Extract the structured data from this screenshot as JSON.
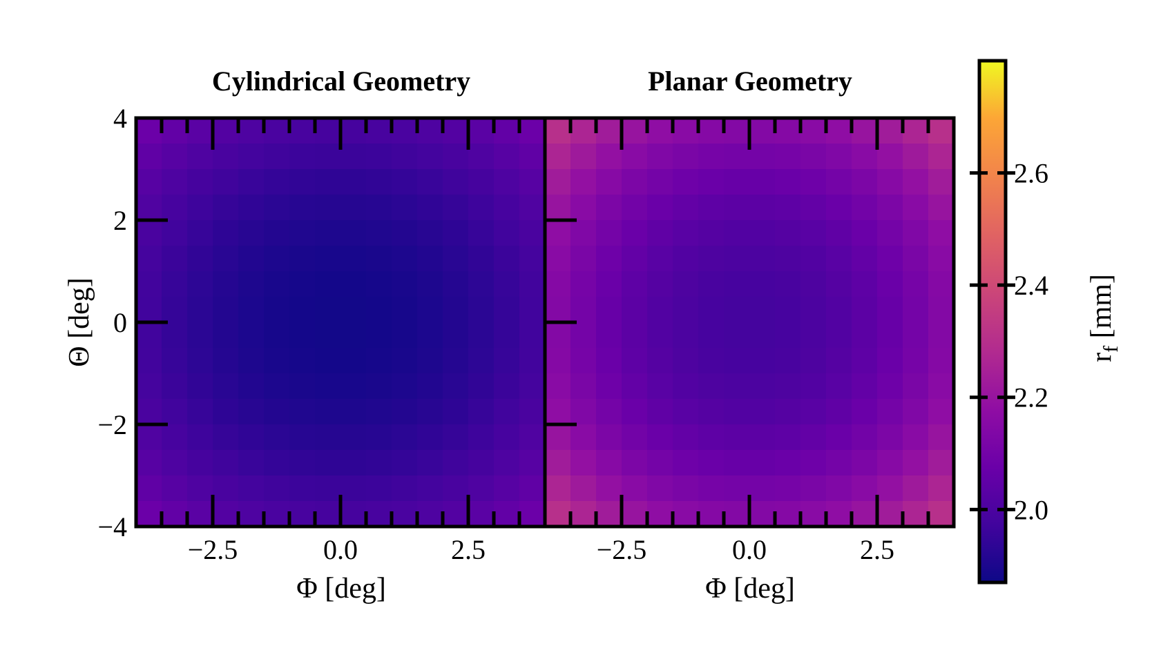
{
  "chart_data": [
    {
      "type": "heatmap",
      "title": "Cylindrical Geometry",
      "xlabel": "Φ [deg]",
      "ylabel": "Θ [deg]",
      "xlim": [
        -4,
        4
      ],
      "ylim": [
        -4,
        4
      ],
      "xticks": [
        -2.5,
        0.0,
        2.5
      ],
      "yticks": [
        -4,
        -2,
        0,
        2,
        4
      ],
      "xtick_labels": [
        "−2.5",
        "0.0",
        "2.5"
      ],
      "ytick_labels": [
        "−4",
        "−2",
        "0",
        "2",
        "4"
      ],
      "grid": "16x16 cells",
      "value_model": {
        "min": 1.88,
        "center_phi": 0.0,
        "center_theta": 0.0,
        "coeff_phi": 0.0065,
        "coeff_theta": 0.0075,
        "max_corner": 2.23
      },
      "colormap": "plasma"
    },
    {
      "type": "heatmap",
      "title": "Planar Geometry",
      "xlabel": "Φ [deg]",
      "xlim": [
        -4,
        4
      ],
      "ylim": [
        -4,
        4
      ],
      "xticks": [
        -2.5,
        0.0,
        2.5
      ],
      "xtick_labels": [
        "−2.5",
        "0.0",
        "2.5"
      ],
      "grid": "16x16 cells",
      "value_model": {
        "min": 1.98,
        "center_phi": 0.0,
        "center_theta": 0.0,
        "coeff_phi": 0.0115,
        "coeff_theta": 0.0115,
        "max_corner": 2.5
      },
      "colormap": "plasma"
    }
  ],
  "colorbar": {
    "label_main": "r",
    "label_sub": "f",
    "label_unit": " [mm]",
    "range": [
      1.87,
      2.8
    ],
    "ticks": [
      2.0,
      2.2,
      2.4,
      2.6
    ],
    "tick_labels": [
      "2.0",
      "2.2",
      "2.4",
      "2.6"
    ],
    "colormap": "plasma"
  }
}
